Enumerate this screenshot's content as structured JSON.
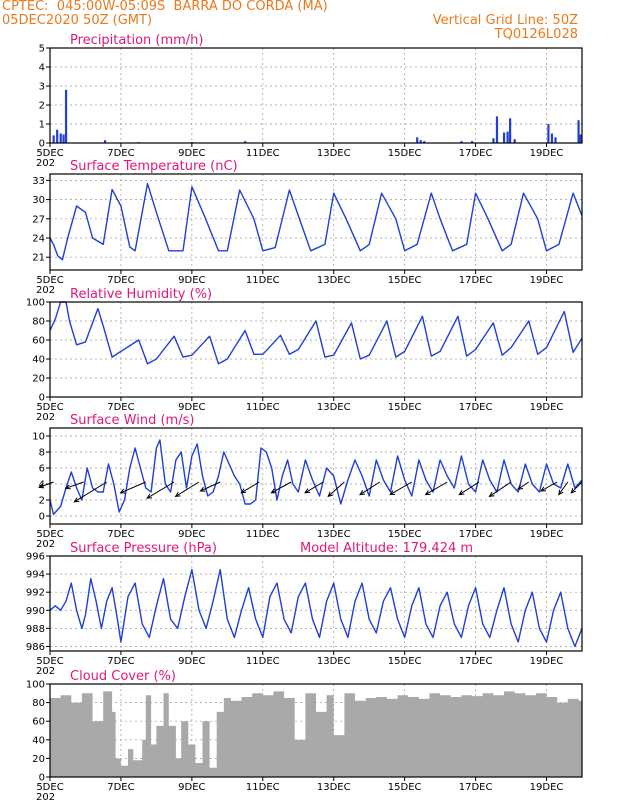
{
  "header": {
    "line1": "CPTEC:  045:00W-05:09S  BARRA DO CORDA (MA)",
    "line2": "05DEC2020 50Z (GMT)",
    "grid_note": "Vertical Grid Line: 50Z",
    "code": "TQ0126L028"
  },
  "x_axis": {
    "range": [
      0,
      15
    ],
    "ticks": [
      {
        "x": 0,
        "label": "5DEC"
      },
      {
        "x": 2,
        "label": "7DEC"
      },
      {
        "x": 4,
        "label": "9DEC"
      },
      {
        "x": 6,
        "label": "11DEC"
      },
      {
        "x": 8,
        "label": "13DEC"
      },
      {
        "x": 10,
        "label": "15DEC"
      },
      {
        "x": 12,
        "label": "17DEC"
      },
      {
        "x": 14,
        "label": "19DEC"
      }
    ],
    "sub_label": "202"
  },
  "colors": {
    "line": "#1f3fd8",
    "bar": "#1f3fd8",
    "cloud": "#a9a9a9",
    "title": "#e0187a",
    "header": "#e87a1e",
    "grid": "#9a9a9a"
  },
  "chart_data": [
    {
      "id": "precip",
      "type": "bar",
      "title": "Precipitation (mm/h)",
      "ylim": [
        0,
        5
      ],
      "yticks": [
        0,
        1,
        2,
        3,
        4,
        5
      ],
      "x": [
        0.1,
        0.2,
        0.3,
        0.38,
        0.45,
        1.55,
        2.5,
        4.0,
        5.5,
        10.35,
        10.45,
        10.55,
        11.6,
        11.9,
        12.5,
        12.6,
        12.8,
        12.9,
        12.97,
        13.1,
        14.05,
        14.15,
        14.25,
        14.9,
        14.95
      ],
      "values": [
        0.4,
        0.7,
        0.5,
        0.45,
        2.8,
        0.15,
        0.05,
        0.05,
        0.1,
        0.3,
        0.15,
        0.1,
        0.1,
        0.1,
        0.25,
        1.4,
        0.55,
        0.6,
        1.3,
        0.2,
        1.0,
        0.5,
        0.3,
        1.2,
        0.45
      ]
    },
    {
      "id": "temp",
      "type": "line",
      "title": "Surface Temperature (nC)",
      "ylim": [
        19,
        34
      ],
      "yticks": [
        21,
        24,
        27,
        30,
        33
      ],
      "x": [
        0,
        0.1,
        0.22,
        0.35,
        0.5,
        0.75,
        1.0,
        1.2,
        1.5,
        1.75,
        2.0,
        2.25,
        2.4,
        2.75,
        3.0,
        3.35,
        3.75,
        4.0,
        4.35,
        4.75,
        5.0,
        5.35,
        5.75,
        6.0,
        6.35,
        6.75,
        7.0,
        7.35,
        7.75,
        8.0,
        8.35,
        8.75,
        9.0,
        9.35,
        9.75,
        10.0,
        10.35,
        10.75,
        11.0,
        11.35,
        11.75,
        12.0,
        12.35,
        12.75,
        13.0,
        13.35,
        13.75,
        14.0,
        14.35,
        14.75,
        15.0
      ],
      "values": [
        24,
        23,
        21.2,
        20.6,
        24,
        29,
        28,
        24,
        23,
        31.6,
        29,
        22.6,
        22,
        32.5,
        28,
        22,
        22,
        32,
        27.5,
        22,
        22,
        31.5,
        27,
        22,
        22.5,
        31.5,
        27.5,
        22,
        23,
        31,
        27,
        22,
        23,
        31,
        27,
        22,
        23,
        31,
        27,
        22,
        23,
        31,
        27,
        22,
        23,
        31,
        27,
        22,
        23,
        31,
        27.5
      ]
    },
    {
      "id": "rh",
      "type": "line",
      "title": "Relative Humidity (%)",
      "ylim": [
        0,
        100
      ],
      "yticks": [
        0,
        20,
        40,
        60,
        80,
        100
      ],
      "x": [
        0,
        0.15,
        0.3,
        0.45,
        0.55,
        0.75,
        1.0,
        1.35,
        1.5,
        1.75,
        2.0,
        2.5,
        2.75,
        3.0,
        3.5,
        3.75,
        4.0,
        4.5,
        4.75,
        5.0,
        5.5,
        5.75,
        6.0,
        6.5,
        6.75,
        7.0,
        7.5,
        7.75,
        8.0,
        8.5,
        8.75,
        9.0,
        9.5,
        9.75,
        10.0,
        10.5,
        10.75,
        11.0,
        11.5,
        11.75,
        12.0,
        12.5,
        12.75,
        13.0,
        13.5,
        13.75,
        14.0,
        14.5,
        14.75,
        15.0
      ],
      "values": [
        70,
        82,
        100,
        100,
        80,
        55,
        58,
        93,
        75,
        42,
        48,
        60,
        35,
        40,
        64,
        42,
        44,
        64,
        35,
        40,
        70,
        45,
        45,
        65,
        45,
        50,
        80,
        42,
        44,
        78,
        40,
        44,
        80,
        42,
        48,
        85,
        43,
        48,
        85,
        43,
        50,
        78,
        44,
        52,
        80,
        45,
        52,
        90,
        47,
        62
      ]
    },
    {
      "id": "wind",
      "type": "line",
      "title": "Surface Wind (m/s)",
      "ylim": [
        -1,
        11
      ],
      "yticks": [
        0,
        2,
        4,
        6,
        8,
        10
      ],
      "x": [
        0,
        0.1,
        0.3,
        0.45,
        0.6,
        0.75,
        0.9,
        1.05,
        1.2,
        1.35,
        1.5,
        1.65,
        1.8,
        1.95,
        2.1,
        2.25,
        2.4,
        2.55,
        2.7,
        2.85,
        3.0,
        3.1,
        3.25,
        3.4,
        3.55,
        3.7,
        3.85,
        4.0,
        4.15,
        4.3,
        4.45,
        4.6,
        4.75,
        4.9,
        5.05,
        5.2,
        5.35,
        5.5,
        5.65,
        5.8,
        5.95,
        6.1,
        6.25,
        6.4,
        6.55,
        6.7,
        6.85,
        7.0,
        7.2,
        7.4,
        7.6,
        7.8,
        8.0,
        8.2,
        8.4,
        8.6,
        8.8,
        9.0,
        9.2,
        9.4,
        9.6,
        9.8,
        10.0,
        10.2,
        10.4,
        10.6,
        10.8,
        11.0,
        11.2,
        11.4,
        11.6,
        11.8,
        12.0,
        12.2,
        12.4,
        12.6,
        12.8,
        13.0,
        13.2,
        13.4,
        13.6,
        13.8,
        14.0,
        14.2,
        14.4,
        14.6,
        14.8,
        15.0
      ],
      "values": [
        2,
        0.2,
        1.2,
        3.5,
        5.5,
        3.5,
        2.0,
        6.0,
        3.5,
        3.0,
        3.0,
        6.5,
        4.0,
        0.5,
        2.0,
        6.0,
        8.5,
        6.0,
        3.5,
        3.0,
        8.5,
        9.5,
        4.0,
        3.0,
        7.0,
        8.0,
        3.5,
        7.5,
        9.0,
        5.0,
        2.5,
        3.0,
        5.0,
        8.0,
        6.5,
        5.0,
        4.0,
        1.5,
        1.5,
        2.0,
        8.5,
        8.0,
        6.0,
        2.0,
        5.0,
        7.0,
        4.0,
        3.0,
        7.0,
        4.5,
        2.5,
        6.0,
        5.0,
        1.5,
        4.5,
        7.0,
        5.0,
        2.5,
        7.0,
        4.5,
        3.0,
        7.5,
        4.5,
        2.5,
        7.0,
        4.5,
        3.0,
        7.0,
        5.0,
        3.5,
        7.5,
        4.0,
        3.0,
        7.0,
        4.5,
        3.0,
        7.0,
        4.0,
        3.0,
        6.5,
        4.0,
        3.0,
        6.5,
        4.0,
        3.5,
        6.5,
        3.5,
        4.5
      ]
    },
    {
      "id": "pres",
      "type": "line",
      "title": "Surface Pressure (hPa)",
      "subtitle": "Model Altitude: 179.424 m",
      "ylim": [
        985.5,
        996
      ],
      "yticks": [
        986,
        988,
        990,
        992,
        994,
        996
      ],
      "x": [
        0,
        0.15,
        0.3,
        0.45,
        0.6,
        0.75,
        0.9,
        1.0,
        1.15,
        1.3,
        1.45,
        1.6,
        1.75,
        1.9,
        2.0,
        2.2,
        2.4,
        2.6,
        2.8,
        3.0,
        3.2,
        3.4,
        3.6,
        3.8,
        4.0,
        4.2,
        4.4,
        4.6,
        4.8,
        5.0,
        5.2,
        5.4,
        5.6,
        5.8,
        6.0,
        6.2,
        6.4,
        6.6,
        6.8,
        7.0,
        7.2,
        7.4,
        7.6,
        7.8,
        8.0,
        8.2,
        8.4,
        8.6,
        8.8,
        9.0,
        9.2,
        9.4,
        9.6,
        9.8,
        10.0,
        10.2,
        10.4,
        10.6,
        10.8,
        11.0,
        11.2,
        11.4,
        11.6,
        11.8,
        12.0,
        12.2,
        12.4,
        12.6,
        12.8,
        13.0,
        13.2,
        13.4,
        13.6,
        13.8,
        14.0,
        14.2,
        14.4,
        14.6,
        14.8,
        15.0
      ],
      "values": [
        990,
        990.5,
        990,
        991,
        993,
        990,
        988,
        989.5,
        993.5,
        991,
        988,
        991,
        992.5,
        989,
        986.5,
        991.5,
        993,
        988.5,
        987,
        990.5,
        993.5,
        989,
        988,
        991.5,
        994.5,
        990,
        988,
        991,
        994.5,
        989,
        987,
        990,
        992.5,
        989,
        987,
        991.5,
        993,
        989,
        987.5,
        991.5,
        993,
        989,
        987,
        991,
        993,
        989,
        987,
        991,
        993,
        989,
        987.5,
        991,
        992.5,
        989,
        987,
        990.5,
        992.5,
        988.5,
        987,
        990.5,
        992,
        988.5,
        987,
        990.5,
        992.5,
        988.5,
        987,
        990,
        992.5,
        988.5,
        986.5,
        990,
        992,
        988,
        986.5,
        990,
        992,
        988,
        986,
        988
      ]
    },
    {
      "id": "cloud",
      "type": "area",
      "title": "Cloud Cover (%)",
      "ylim": [
        0,
        100
      ],
      "yticks": [
        0,
        20,
        40,
        60,
        80,
        100
      ],
      "x": [
        0,
        0.3,
        0.6,
        0.9,
        1.2,
        1.5,
        1.75,
        1.85,
        2.0,
        2.2,
        2.35,
        2.6,
        2.7,
        2.85,
        3.0,
        3.2,
        3.35,
        3.55,
        3.7,
        3.9,
        4.1,
        4.3,
        4.5,
        4.7,
        4.9,
        5.1,
        5.4,
        5.7,
        6.0,
        6.3,
        6.6,
        6.9,
        7.2,
        7.5,
        7.8,
        8.0,
        8.3,
        8.6,
        8.9,
        9.2,
        9.5,
        9.8,
        10.1,
        10.4,
        10.7,
        11.0,
        11.3,
        11.6,
        11.9,
        12.2,
        12.5,
        12.8,
        13.1,
        13.4,
        13.7,
        14.0,
        14.3,
        14.6,
        14.9,
        15.0
      ],
      "values": [
        85,
        88,
        80,
        90,
        60,
        92,
        70,
        20,
        12,
        30,
        18,
        40,
        88,
        35,
        55,
        90,
        55,
        20,
        60,
        35,
        15,
        60,
        10,
        70,
        85,
        82,
        86,
        90,
        88,
        92,
        85,
        40,
        90,
        70,
        88,
        45,
        90,
        82,
        85,
        86,
        84,
        88,
        86,
        84,
        90,
        88,
        86,
        88,
        87,
        90,
        88,
        92,
        90,
        88,
        90,
        86,
        80,
        84,
        82,
        88
      ]
    }
  ],
  "wind_arrows": [
    {
      "x": 0.1,
      "u": -0.8,
      "v": -0.3
    },
    {
      "x": 0.95,
      "u": -1.0,
      "v": -0.35
    },
    {
      "x": 1.6,
      "u": -1.8,
      "v": -1.1
    },
    {
      "x": 2.7,
      "u": -1.4,
      "v": -0.6
    },
    {
      "x": 3.5,
      "u": -1.5,
      "v": -0.9
    },
    {
      "x": 4.2,
      "u": -1.3,
      "v": -0.8
    },
    {
      "x": 4.8,
      "u": -1.1,
      "v": -0.5
    },
    {
      "x": 5.9,
      "u": -1.0,
      "v": -0.6
    },
    {
      "x": 6.8,
      "u": -1.1,
      "v": -0.6
    },
    {
      "x": 7.7,
      "u": -1.0,
      "v": -0.6
    },
    {
      "x": 8.3,
      "u": -0.9,
      "v": -0.8
    },
    {
      "x": 9.3,
      "u": -1.1,
      "v": -0.7
    },
    {
      "x": 10.2,
      "u": -1.2,
      "v": -0.7
    },
    {
      "x": 11.2,
      "u": -1.2,
      "v": -0.7
    },
    {
      "x": 12.1,
      "u": -1.1,
      "v": -0.7
    },
    {
      "x": 13.0,
      "u": -1.2,
      "v": -0.8
    },
    {
      "x": 13.5,
      "u": -0.6,
      "v": -0.4
    },
    {
      "x": 14.3,
      "u": -0.9,
      "v": -0.5
    },
    {
      "x": 14.6,
      "u": -0.5,
      "v": -0.7
    },
    {
      "x": 15.0,
      "u": -0.6,
      "v": -0.6
    }
  ]
}
